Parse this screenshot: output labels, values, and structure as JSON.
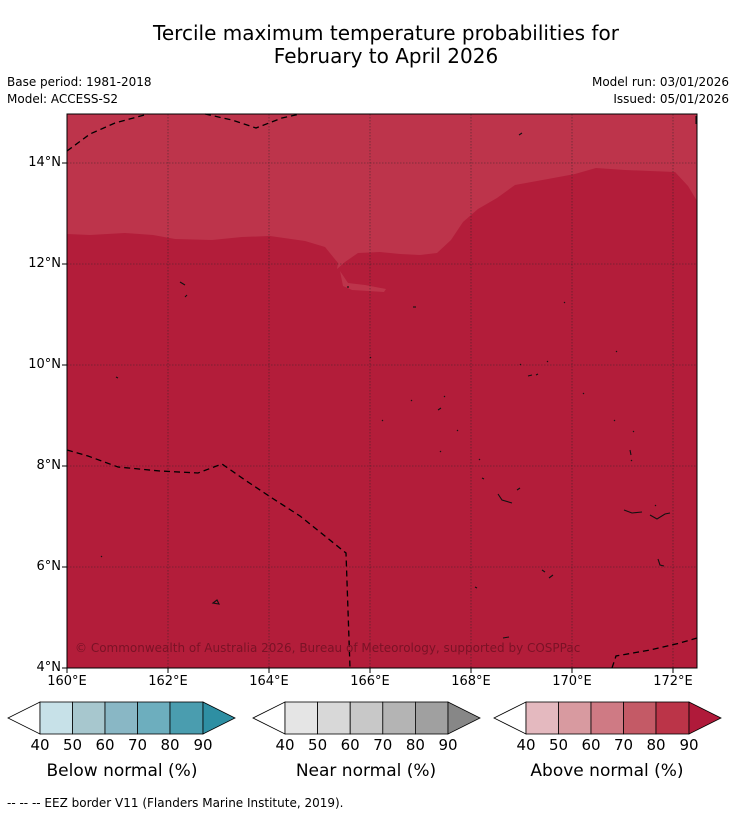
{
  "title_line1": "Tercile maximum temperature probabilities for",
  "title_line2": "February to April 2026",
  "base_period": "Base period: 1981-2018",
  "model": "Model: ACCESS-S2",
  "model_run": "Model run: 03/01/2026",
  "issued": "Issued: 05/01/2026",
  "copyright": "© Commonwealth of Australia 2026, Bureau of Meteorology, supported by COSPPac",
  "footer": "--  --  -- EEZ border V11 (Flanders Marine Institute, 2019).",
  "map": {
    "lat_labels": [
      "14°N",
      "12°N",
      "10°N",
      "8°N",
      "6°N",
      "4°N"
    ],
    "lon_labels": [
      "160°E",
      "162°E",
      "164°E",
      "166°E",
      "168°E",
      "170°E",
      "172°E"
    ],
    "lat_range": [
      4,
      15
    ],
    "lon_range": [
      160,
      172.5
    ],
    "colors": {
      "above_90": "#b31d3a",
      "above_80": "#bd344b",
      "eez": "#000000"
    }
  },
  "colorbars": [
    {
      "title": "Below normal (%)",
      "ticks": [
        "40",
        "50",
        "60",
        "70",
        "80",
        "90"
      ],
      "colors": [
        "#c7e1e8",
        "#a7c7ce",
        "#89b7c5",
        "#6daebe",
        "#4a9daf",
        "#2e8fa3"
      ]
    },
    {
      "title": "Near normal (%)",
      "ticks": [
        "40",
        "50",
        "60",
        "70",
        "80",
        "90"
      ],
      "colors": [
        "#e5e5e5",
        "#d8d8d8",
        "#c8c8c8",
        "#b4b4b4",
        "#a0a0a0",
        "#878787"
      ]
    },
    {
      "title": "Above normal (%)",
      "ticks": [
        "40",
        "50",
        "60",
        "70",
        "80",
        "90"
      ],
      "colors": [
        "#e4b9bf",
        "#d89aa0",
        "#cf7a84",
        "#c45a66",
        "#bb3448",
        "#b01a3a"
      ]
    }
  ]
}
